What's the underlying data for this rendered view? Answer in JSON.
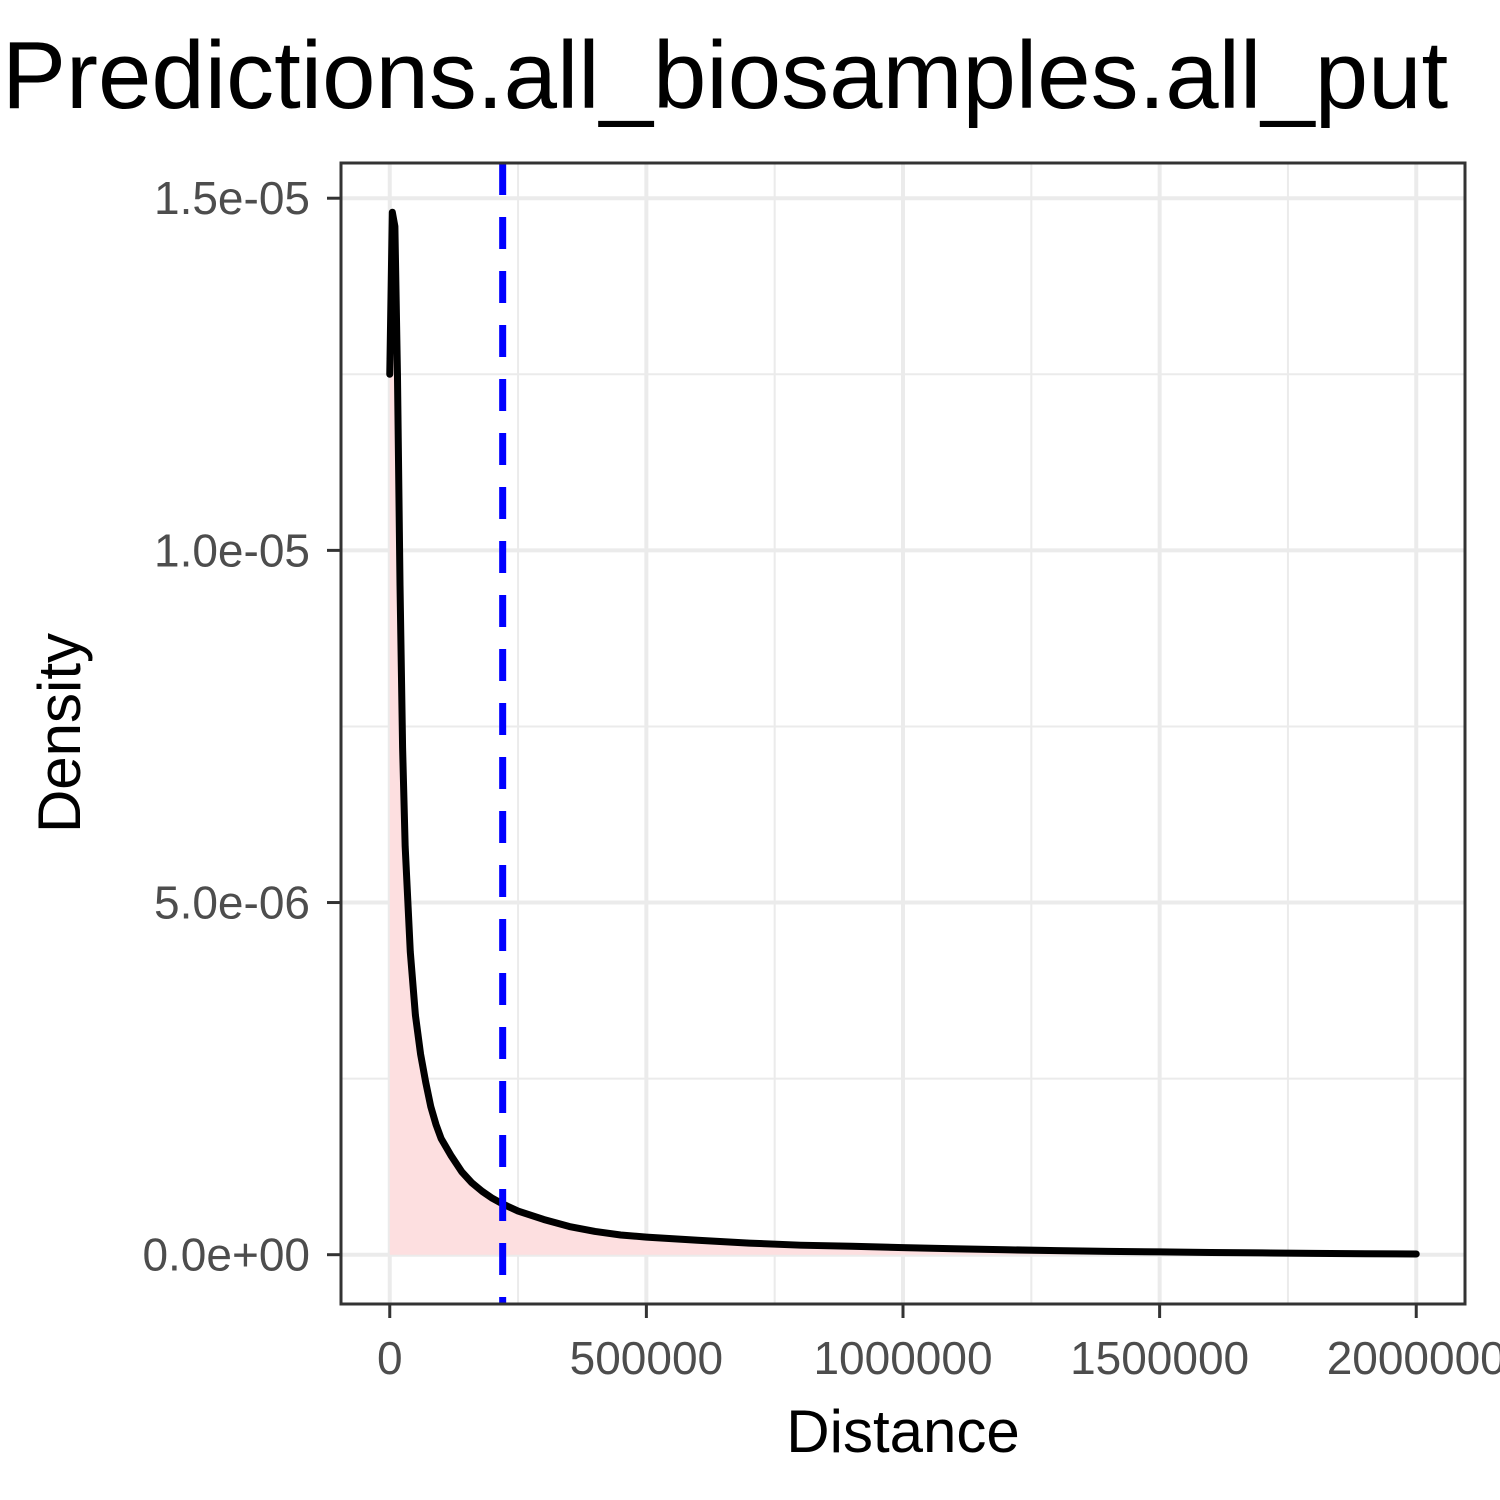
{
  "chart_data": {
    "type": "area",
    "title": "Predictions.all_biosamples.all_put",
    "xlabel": "Distance",
    "ylabel": "Density",
    "xlim": [
      -95000,
      2095000
    ],
    "ylim": [
      -7e-07,
      1.55e-05
    ],
    "x_ticks": [
      0,
      500000,
      1000000,
      1500000,
      2000000
    ],
    "x_tick_labels": [
      "0",
      "500000",
      "1000000",
      "1500000",
      "2000000"
    ],
    "y_ticks": [
      0,
      5e-06,
      1e-05,
      1.5e-05
    ],
    "y_tick_labels": [
      "0.0e+00",
      "5.0e-06",
      "1.0e-05",
      "1.5e-05"
    ],
    "grid": true,
    "colors": {
      "line": "#000000",
      "fill": "#fddfe0",
      "vline": "#0000ff",
      "grid": "#ebebeb",
      "panel_border": "#333333"
    },
    "vline": {
      "x": 220000,
      "style": "dashed"
    },
    "series": [
      {
        "x": [
          0,
          5000,
          10000,
          15000,
          20000,
          25000,
          30000,
          40000,
          50000,
          60000,
          70000,
          80000,
          90000,
          100000,
          120000,
          140000,
          160000,
          180000,
          200000,
          220000,
          250000,
          300000,
          350000,
          400000,
          450000,
          500000,
          600000,
          700000,
          800000,
          900000,
          1000000,
          1100000,
          1200000,
          1300000,
          1400000,
          1500000,
          1600000,
          1700000,
          1800000,
          1900000,
          2000000
        ],
        "y": [
          1.25e-05,
          1.48e-05,
          1.46e-05,
          1.25e-05,
          9.5e-06,
          7.2e-06,
          5.8e-06,
          4.3e-06,
          3.4e-06,
          2.85e-06,
          2.45e-06,
          2.1e-06,
          1.85e-06,
          1.65e-06,
          1.4e-06,
          1.18e-06,
          1.02e-06,
          9e-07,
          8e-07,
          7.2e-07,
          6.2e-07,
          5e-07,
          4e-07,
          3.3e-07,
          2.8e-07,
          2.5e-07,
          2.05e-07,
          1.65e-07,
          1.35e-07,
          1.2e-07,
          1e-07,
          8.5e-08,
          7e-08,
          5.8e-08,
          4.8e-08,
          4e-08,
          3.2e-08,
          2.5e-08,
          1.9e-08,
          1.3e-08,
          1e-08
        ]
      }
    ]
  }
}
